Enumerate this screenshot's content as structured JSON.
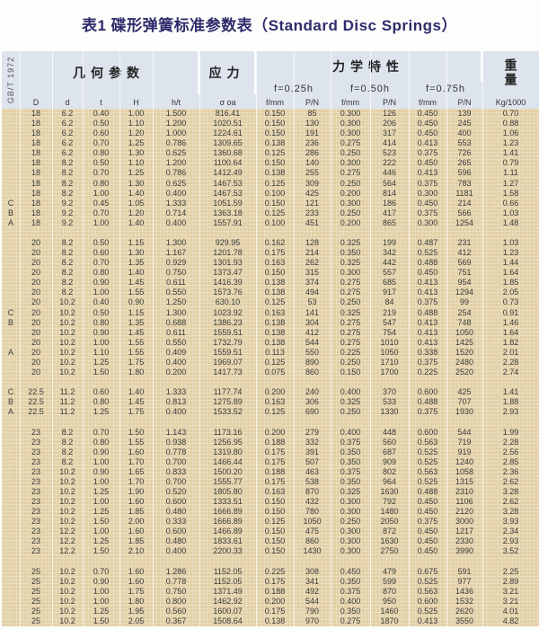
{
  "title": "表1  碟形弹簧标准参数表（Standard Disc Springs）",
  "header": {
    "side_label": "GB/T 1972",
    "geometry": "几何参数",
    "stress": "应力",
    "mechanics": "力学特性",
    "weight": "重量",
    "f_groups": [
      "f=0.25h",
      "f=0.50h",
      "f=0.75h"
    ],
    "columns": [
      "D",
      "d",
      "t",
      "H",
      "h/t",
      "σ oa",
      "f/mm",
      "P/N",
      "f/mm",
      "P/N",
      "f/mm",
      "P/N",
      "Kg/1000"
    ]
  },
  "groups": [
    [
      [
        "",
        "18",
        "6.2",
        "0.40",
        "1.00",
        "1.500",
        "816.41",
        "0.150",
        "85",
        "0.300",
        "126",
        "0.450",
        "139",
        "0.70"
      ],
      [
        "",
        "18",
        "6.2",
        "0.50",
        "1.10",
        "1.200",
        "1020.51",
        "0.150",
        "130",
        "0.300",
        "206",
        "0.450",
        "245",
        "0.88"
      ],
      [
        "",
        "18",
        "6.2",
        "0.60",
        "1.20",
        "1.000",
        "1224.61",
        "0.150",
        "191",
        "0.300",
        "317",
        "0.450",
        "400",
        "1.06"
      ],
      [
        "",
        "18",
        "6.2",
        "0.70",
        "1.25",
        "0.786",
        "1309.65",
        "0.138",
        "236",
        "0.275",
        "414",
        "0.413",
        "553",
        "1.23"
      ],
      [
        "",
        "18",
        "6.2",
        "0.80",
        "1.30",
        "0.625",
        "1360.68",
        "0.125",
        "286",
        "0.250",
        "523",
        "0.375",
        "726",
        "1.41"
      ],
      [
        "",
        "18",
        "8.2",
        "0.50",
        "1.10",
        "1.200",
        "1100.64",
        "0.150",
        "140",
        "0.300",
        "222",
        "0.450",
        "265",
        "0.79"
      ],
      [
        "",
        "18",
        "8.2",
        "0.70",
        "1.25",
        "0.786",
        "1412.49",
        "0.138",
        "255",
        "0.275",
        "446",
        "0.413",
        "596",
        "1.11"
      ],
      [
        "",
        "18",
        "8.2",
        "0.80",
        "1.30",
        "0.625",
        "1467.53",
        "0.125",
        "309",
        "0.250",
        "564",
        "0.375",
        "783",
        "1.27"
      ],
      [
        "",
        "18",
        "8.2",
        "1.00",
        "1.40",
        "0.400",
        "1467.53",
        "0.100",
        "425",
        "0.200",
        "814",
        "0.300",
        "1181",
        "1.58"
      ],
      [
        "C",
        "18",
        "9.2",
        "0.45",
        "1.05",
        "1.333",
        "1051.59",
        "0.150",
        "121",
        "0.300",
        "186",
        "0.450",
        "214",
        "0.66"
      ],
      [
        "B",
        "18",
        "9.2",
        "0.70",
        "1.20",
        "0.714",
        "1363.18",
        "0.125",
        "233",
        "0.250",
        "417",
        "0.375",
        "566",
        "1.03"
      ],
      [
        "A",
        "18",
        "9.2",
        "1.00",
        "1.40",
        "0.400",
        "1557.91",
        "0.100",
        "451",
        "0.200",
        "865",
        "0.300",
        "1254",
        "1.48"
      ]
    ],
    [
      [
        "",
        "20",
        "8.2",
        "0.50",
        "1.15",
        "1.300",
        "929.95",
        "0.162",
        "128",
        "0.325",
        "199",
        "0.487",
        "231",
        "1.03"
      ],
      [
        "",
        "20",
        "8.2",
        "0.60",
        "1.30",
        "1.167",
        "1201.78",
        "0.175",
        "214",
        "0.350",
        "342",
        "0.525",
        "412",
        "1.23"
      ],
      [
        "",
        "20",
        "8.2",
        "0.70",
        "1.35",
        "0.929",
        "1301.93",
        "0.163",
        "262",
        "0.325",
        "442",
        "0.488",
        "569",
        "1.44"
      ],
      [
        "",
        "20",
        "8.2",
        "0.80",
        "1.40",
        "0.750",
        "1373.47",
        "0.150",
        "315",
        "0.300",
        "557",
        "0.450",
        "751",
        "1.64"
      ],
      [
        "",
        "20",
        "8.2",
        "0.90",
        "1.45",
        "0.611",
        "1416.39",
        "0.138",
        "374",
        "0.275",
        "685",
        "0.413",
        "954",
        "1.85"
      ],
      [
        "",
        "20",
        "8.2",
        "1.00",
        "1.55",
        "0.550",
        "1573.76",
        "0.138",
        "494",
        "0.275",
        "917",
        "0.413",
        "1294",
        "2.05"
      ],
      [
        "",
        "20",
        "10.2",
        "0.40",
        "0.90",
        "1.250",
        "630.10",
        "0.125",
        "53",
        "0.250",
        "84",
        "0.375",
        "99",
        "0.73"
      ],
      [
        "C",
        "20",
        "10.2",
        "0.50",
        "1.15",
        "1.300",
        "1023.92",
        "0.163",
        "141",
        "0.325",
        "219",
        "0.488",
        "254",
        "0.91"
      ],
      [
        "B",
        "20",
        "10.2",
        "0.80",
        "1.35",
        "0.688",
        "1386.23",
        "0.138",
        "304",
        "0.275",
        "547",
        "0.413",
        "748",
        "1.46"
      ],
      [
        "",
        "20",
        "10.2",
        "0.90",
        "1.45",
        "0.611",
        "1559.51",
        "0.138",
        "412",
        "0.275",
        "754",
        "0.413",
        "1050",
        "1.64"
      ],
      [
        "",
        "20",
        "10.2",
        "1.00",
        "1.55",
        "0.550",
        "1732.79",
        "0.138",
        "544",
        "0.275",
        "1010",
        "0.413",
        "1425",
        "1.82"
      ],
      [
        "A",
        "20",
        "10.2",
        "1.10",
        "1.55",
        "0.409",
        "1559.51",
        "0.113",
        "550",
        "0.225",
        "1050",
        "0.338",
        "1520",
        "2.01"
      ],
      [
        "",
        "20",
        "10.2",
        "1.25",
        "1.75",
        "0.400",
        "1969.07",
        "0.125",
        "890",
        "0.250",
        "1710",
        "0.375",
        "2480",
        "2.28"
      ],
      [
        "",
        "20",
        "10.2",
        "1.50",
        "1.80",
        "0.200",
        "1417.73",
        "0.075",
        "860",
        "0.150",
        "1700",
        "0.225",
        "2520",
        "2.74"
      ]
    ],
    [
      [
        "C",
        "22.5",
        "11.2",
        "0.60",
        "1.40",
        "1.333",
        "1177.74",
        "0.200",
        "240",
        "0.400",
        "370",
        "0.600",
        "425",
        "1.41"
      ],
      [
        "B",
        "22.5",
        "11.2",
        "0.80",
        "1.45",
        "0.813",
        "1275.89",
        "0.163",
        "306",
        "0.325",
        "533",
        "0.488",
        "707",
        "1.88"
      ],
      [
        "A",
        "22.5",
        "11.2",
        "1.25",
        "1.75",
        "0.400",
        "1533.52",
        "0.125",
        "690",
        "0.250",
        "1330",
        "0.375",
        "1930",
        "2.93"
      ]
    ],
    [
      [
        "",
        "23",
        "8.2",
        "0.70",
        "1.50",
        "1.143",
        "1173.16",
        "0.200",
        "279",
        "0.400",
        "448",
        "0.600",
        "544",
        "1.99"
      ],
      [
        "",
        "23",
        "8.2",
        "0.80",
        "1.55",
        "0.938",
        "1256.95",
        "0.188",
        "332",
        "0.375",
        "560",
        "0.563",
        "719",
        "2.28"
      ],
      [
        "",
        "23",
        "8.2",
        "0.90",
        "1.60",
        "0.778",
        "1319.80",
        "0.175",
        "391",
        "0.350",
        "687",
        "0.525",
        "919",
        "2.56"
      ],
      [
        "",
        "23",
        "8.2",
        "1.00",
        "1.70",
        "0.700",
        "1466.44",
        "0.175",
        "507",
        "0.350",
        "909",
        "0.525",
        "1240",
        "2.85"
      ],
      [
        "",
        "23",
        "10.2",
        "0.90",
        "1.65",
        "0.833",
        "1500.20",
        "0.188",
        "463",
        "0.375",
        "802",
        "0.563",
        "1058",
        "2.36"
      ],
      [
        "",
        "23",
        "10.2",
        "1.00",
        "1.70",
        "0.700",
        "1555.77",
        "0.175",
        "538",
        "0.350",
        "964",
        "0.525",
        "1315",
        "2.62"
      ],
      [
        "",
        "23",
        "10.2",
        "1.25",
        "1.90",
        "0.520",
        "1805.80",
        "0.163",
        "870",
        "0.325",
        "1630",
        "0.488",
        "2310",
        "3.28"
      ],
      [
        "",
        "23",
        "10.2",
        "1.00",
        "1.60",
        "0.600",
        "1333.51",
        "0.150",
        "432",
        "0.300",
        "792",
        "0.450",
        "1106",
        "2.62"
      ],
      [
        "",
        "23",
        "10.2",
        "1.25",
        "1.85",
        "0.480",
        "1666.89",
        "0.150",
        "780",
        "0.300",
        "1480",
        "0.450",
        "2120",
        "3.28"
      ],
      [
        "",
        "23",
        "10.2",
        "1.50",
        "2.00",
        "0.333",
        "1666.89",
        "0.125",
        "1050",
        "0.250",
        "2050",
        "0.375",
        "3000",
        "3.93"
      ],
      [
        "",
        "23",
        "12.2",
        "1.00",
        "1.60",
        "0.600",
        "1466.89",
        "0.150",
        "475",
        "0.300",
        "872",
        "0.450",
        "1217",
        "2.34"
      ],
      [
        "",
        "23",
        "12.2",
        "1.25",
        "1.85",
        "0.480",
        "1833.61",
        "0.150",
        "860",
        "0.300",
        "1630",
        "0.450",
        "2330",
        "2.93"
      ],
      [
        "",
        "23",
        "12.2",
        "1.50",
        "2.10",
        "0.400",
        "2200.33",
        "0.150",
        "1430",
        "0.300",
        "2750",
        "0.450",
        "3990",
        "3.52"
      ]
    ],
    [
      [
        "",
        "25",
        "10.2",
        "0.70",
        "1.60",
        "1.286",
        "1152.05",
        "0.225",
        "308",
        "0.450",
        "479",
        "0.675",
        "591",
        "2.25"
      ],
      [
        "",
        "25",
        "10.2",
        "0.90",
        "1.60",
        "0.778",
        "1152.05",
        "0.175",
        "341",
        "0.350",
        "599",
        "0.525",
        "977",
        "2.89"
      ],
      [
        "",
        "25",
        "10.2",
        "1.00",
        "1.75",
        "0.750",
        "1371.49",
        "0.188",
        "492",
        "0.375",
        "870",
        "0.563",
        "1436",
        "3.21"
      ],
      [
        "",
        "25",
        "10.2",
        "1.00",
        "1.80",
        "0.800",
        "1462.92",
        "0.200",
        "544",
        "0.400",
        "950",
        "0.600",
        "1532",
        "3.21"
      ],
      [
        "",
        "25",
        "10.2",
        "1.25",
        "1.95",
        "0.560",
        "1600.07",
        "0.175",
        "790",
        "0.350",
        "1460",
        "0.525",
        "2620",
        "4.01"
      ],
      [
        "",
        "25",
        "10.2",
        "1.50",
        "2.05",
        "0.367",
        "1508.64",
        "0.138",
        "970",
        "0.275",
        "1870",
        "0.413",
        "3550",
        "4.82"
      ]
    ]
  ]
}
